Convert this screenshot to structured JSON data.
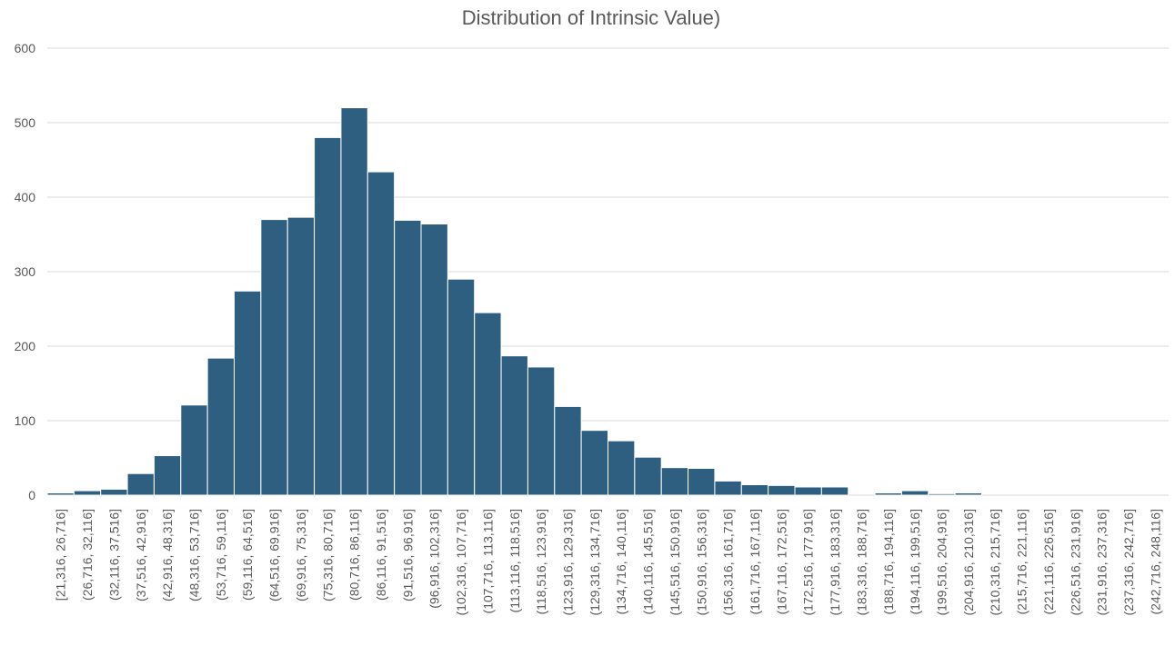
{
  "chart_data": {
    "type": "bar",
    "title": "Distribution of Intrinsic Value)",
    "xlabel": "",
    "ylabel": "",
    "ylim": [
      0,
      600
    ],
    "y_ticks": [
      0,
      100,
      200,
      300,
      400,
      500,
      600
    ],
    "grid": true,
    "legend": "none",
    "bar_color": "#2E5F80",
    "categories": [
      "[21,316, 26,716]",
      "(26,716, 32,116]",
      "(32,116, 37,516]",
      "(37,516, 42,916]",
      "(42,916, 48,316]",
      "(48,316, 53,716]",
      "(53,716, 59,116]",
      "(59,116, 64,516]",
      "(64,516, 69,916]",
      "(69,916, 75,316]",
      "(75,316, 80,716]",
      "(80,716, 86,116]",
      "(86,116, 91,516]",
      "(91,516, 96,916]",
      "(96,916, 102,316]",
      "(102,316, 107,716]",
      "(107,716, 113,116]",
      "(113,116, 118,516]",
      "(118,516, 123,916]",
      "(123,916, 129,316]",
      "(129,316, 134,716]",
      "(134,716, 140,116]",
      "(140,116, 145,516]",
      "(145,516, 150,916]",
      "(150,916, 156,316]",
      "(156,316, 161,716]",
      "(161,716, 167,116]",
      "(167,116, 172,516]",
      "(172,516, 177,916]",
      "(177,916, 183,316]",
      "(183,316, 188,716]",
      "(188,716, 194,116]",
      "(194,116, 199,516]",
      "(199,516, 204,916]",
      "(204,916, 210,316]",
      "(210,316, 215,716]",
      "(215,716, 221,116]",
      "(221,116, 226,516]",
      "(226,516, 231,916]",
      "(231,916, 237,316]",
      "(237,316, 242,716]",
      "(242,716, 248,116]"
    ],
    "values": [
      3,
      6,
      8,
      29,
      53,
      121,
      184,
      274,
      370,
      373,
      480,
      520,
      434,
      369,
      364,
      290,
      245,
      187,
      172,
      119,
      87,
      73,
      51,
      37,
      36,
      19,
      14,
      13,
      11,
      11,
      0,
      3,
      6,
      2,
      3,
      0,
      0,
      0,
      0,
      0,
      0,
      0
    ]
  }
}
